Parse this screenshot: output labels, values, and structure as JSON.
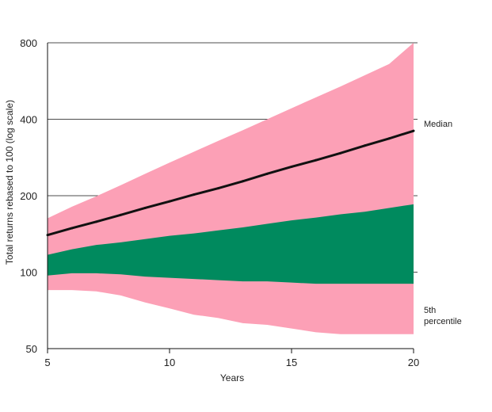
{
  "chart_data": {
    "type": "area",
    "xlabel": "Years",
    "ylabel": "Total returns rebased to 100 (log scale)",
    "y_scale": "log",
    "xlim": [
      5,
      20
    ],
    "ylim": [
      50,
      800
    ],
    "x_ticks": [
      "5",
      "10",
      "15",
      "20"
    ],
    "y_ticks": [
      "50",
      "100",
      "200",
      "400",
      "800"
    ],
    "grid": "horizontal",
    "colors": {
      "outer_band": "#FCA0B6",
      "inner_band": "#008A5E",
      "median": "#111111"
    },
    "annotations": [
      {
        "text": "Median",
        "at_x": 20,
        "at_y": 390
      },
      {
        "text": "5th",
        "at_x": 20,
        "at_y": 65
      },
      {
        "text": "percentile",
        "at_x": 20,
        "at_y": 59
      }
    ],
    "x": [
      5,
      6,
      7,
      8,
      9,
      10,
      11,
      12,
      13,
      14,
      15,
      16,
      17,
      18,
      19,
      20
    ],
    "series": [
      {
        "values": [
          85,
          85,
          84,
          81,
          76,
          72,
          68,
          66,
          63,
          62,
          60,
          58,
          57,
          57,
          57,
          57
        ]
      },
      {
        "values": [
          97,
          99,
          99,
          98,
          96,
          95,
          94,
          93,
          92,
          92,
          91,
          90,
          90,
          90,
          90,
          90
        ]
      },
      {
        "values": [
          117,
          123,
          128,
          131,
          135,
          139,
          142,
          146,
          150,
          155,
          160,
          164,
          169,
          173,
          179,
          185
        ]
      },
      {
        "name": "Median",
        "values": [
          140,
          149,
          158,
          168,
          179,
          190,
          202,
          214,
          228,
          244,
          260,
          276,
          294,
          315,
          336,
          360
        ]
      },
      {
        "values": [
          163,
          181,
          199,
          220,
          244,
          270,
          298,
          329,
          362,
          400,
          442,
          488,
          538,
          596,
          660,
          800
        ]
      }
    ]
  }
}
